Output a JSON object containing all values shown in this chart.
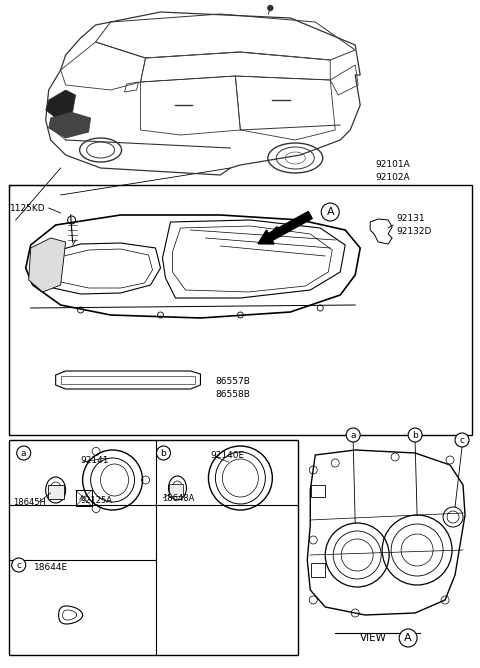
{
  "bg_color": "#ffffff",
  "labels": {
    "part_92101A_92102A": "92101A\n92102A",
    "part_1125KD": "1125KD",
    "part_92131_92132D": "92131\n92132D",
    "part_86557B_86558B": "86557B\n86558B",
    "part_92141": "92141",
    "part_92125A": "92125A",
    "part_18645H": "18645H",
    "part_92140E": "92140E",
    "part_18648A": "18648A",
    "part_18644E": "18644E",
    "view_a": "VIEW",
    "view_a_circle": "A"
  }
}
